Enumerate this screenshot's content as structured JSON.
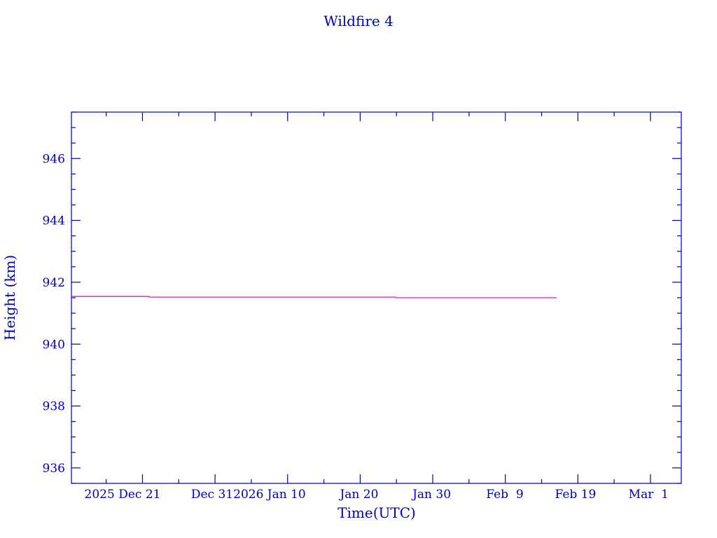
{
  "chart_data": {
    "type": "line",
    "title": "Wildfire 4",
    "xlabel": "Time(UTC)",
    "ylabel": "Height (km)",
    "xlim": [
      "2025-12-11T05:00",
      "2026-03-05T06:00"
    ],
    "ylim": [
      935.5,
      947.5
    ],
    "y_ticks": [
      936,
      938,
      940,
      942,
      944,
      946
    ],
    "y_minor_step": 0.5,
    "x_ticks": [
      {
        "date": "2025-12-21",
        "label": "2025 Dec 21"
      },
      {
        "date": "2025-12-31",
        "label": "Dec 31"
      },
      {
        "date": "2026-01-10",
        "label": "2026 Jan 10"
      },
      {
        "date": "2026-01-20",
        "label": "Jan 20"
      },
      {
        "date": "2026-01-30",
        "label": "Jan 30"
      },
      {
        "date": "2026-02-09",
        "label": "Feb  9"
      },
      {
        "date": "2026-02-19",
        "label": "Feb 19"
      },
      {
        "date": "2026-03-01",
        "label": "Mar  1"
      }
    ],
    "x_minor_step_days": 5,
    "grid": false,
    "series": [
      {
        "color": "#d020d0",
        "points": [
          {
            "x": "2025-12-11T05:00",
            "y": 941.54
          },
          {
            "x": "2025-12-21T22:00",
            "y": 941.54
          },
          {
            "x": "2025-12-21T22:00",
            "y": 941.52
          },
          {
            "x": "2026-01-24T22:00",
            "y": 941.52
          },
          {
            "x": "2026-01-24T22:00",
            "y": 941.5
          },
          {
            "x": "2026-02-16T02:00",
            "y": 941.5
          }
        ]
      }
    ],
    "colors": {
      "axis": "#0000b4",
      "text": "#0000b4"
    }
  }
}
